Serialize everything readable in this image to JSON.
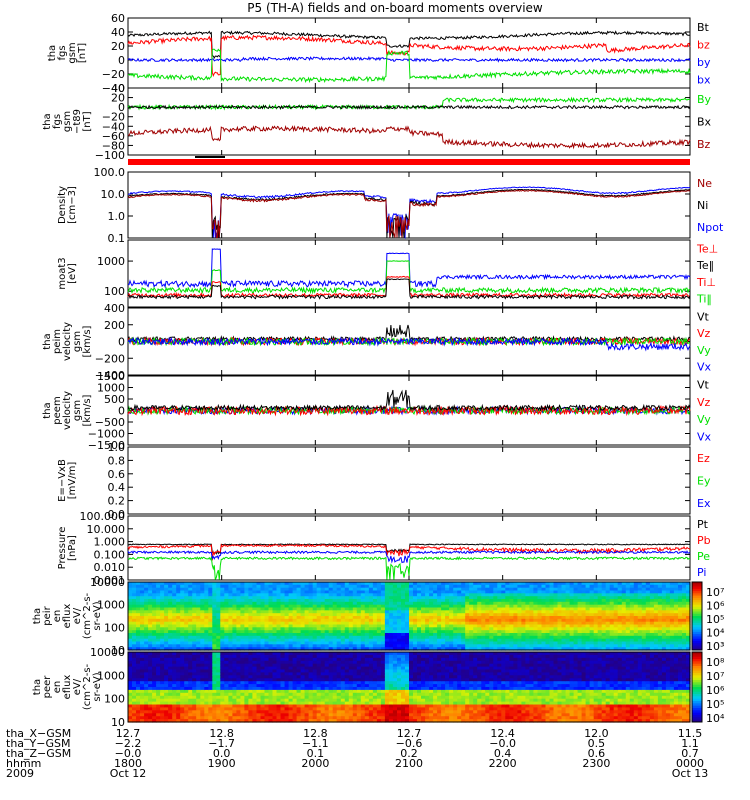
{
  "title": "P5 (TH-A) fields and on-board moments overview",
  "colors": {
    "black": "#000000",
    "red": "#ff0000",
    "green": "#00e000",
    "blue": "#0000ff",
    "darkred": "#a00000",
    "ion_flag": "#ff0000"
  },
  "chart_data": {
    "type": "line",
    "time_range_ut": [
      1800,
      2400
    ],
    "panels": [
      {
        "id": "fgs",
        "ylabel": [
          "tha",
          "fgs",
          "gsm",
          "[nT]"
        ],
        "ylim": [
          -40,
          60
        ],
        "ticks": [
          "60",
          "40",
          "20",
          "0",
          "−20",
          "−40"
        ],
        "log": false,
        "legend": [
          {
            "name": "Bt",
            "color": "#000000"
          },
          {
            "name": "bz",
            "color": "#ff0000"
          },
          {
            "name": "by",
            "color": "#0000ff"
          },
          {
            "name": "bx",
            "color": "#0000ff"
          }
        ]
      },
      {
        "id": "fgs_t89",
        "ylabel": [
          "tha",
          "fgs",
          "gsm",
          "−t89",
          "[nT]"
        ],
        "ylim": [
          -100,
          40
        ],
        "ticks": [
          "40",
          "20",
          "0",
          "−20",
          "−40",
          "−60",
          "−80",
          "−100"
        ],
        "log": false,
        "legend": [
          {
            "name": "By",
            "color": "#00e000"
          },
          {
            "name": "Bx",
            "color": "#000000"
          },
          {
            "name": "Bz",
            "color": "#a00000"
          }
        ]
      },
      {
        "id": "density",
        "ylabel": [
          "Density",
          "[cm−3]"
        ],
        "ylim": [
          0.1,
          100.0
        ],
        "ticks": [
          "100.0",
          "10.0",
          "1.0",
          "0.1"
        ],
        "log": true,
        "legend": [
          {
            "name": "Ne",
            "color": "#a00000"
          },
          {
            "name": "Ni",
            "color": "#000000"
          },
          {
            "name": "Npot",
            "color": "#0000ff"
          }
        ]
      },
      {
        "id": "temperature",
        "ylabel": [
          "moat3",
          "[eV]"
        ],
        "ylim": [
          30,
          5000
        ],
        "ticks": [
          "1000",
          "100"
        ],
        "log": true,
        "legend": [
          {
            "name": "Te⊥",
            "color": "#ff0000"
          },
          {
            "name": "Te‖",
            "color": "#000000"
          },
          {
            "name": "Ti⊥",
            "color": "#ff0000"
          },
          {
            "name": "Ti‖",
            "color": "#00e000"
          }
        ]
      },
      {
        "id": "ion_velocity",
        "ylabel": [
          "tha",
          "peim",
          "velocity",
          "gsm",
          "[km/s]"
        ],
        "ylim": [
          -400,
          400
        ],
        "ticks": [
          "400",
          "200",
          "0",
          "−200",
          "−400"
        ],
        "log": false,
        "legend": [
          {
            "name": "Vt",
            "color": "#000000"
          },
          {
            "name": "Vz",
            "color": "#ff0000"
          },
          {
            "name": "Vy",
            "color": "#00e000"
          },
          {
            "name": "Vx",
            "color": "#0000ff"
          }
        ]
      },
      {
        "id": "electron_velocity",
        "ylabel": [
          "tha",
          "peem",
          "velocity",
          "gsm",
          "[km/s]"
        ],
        "ylim": [
          -1500,
          1500
        ],
        "ticks": [
          "1500",
          "1000",
          "500",
          "0",
          "−500",
          "−1000",
          "−1500"
        ],
        "log": false,
        "legend": [
          {
            "name": "Vt",
            "color": "#000000"
          },
          {
            "name": "Vz",
            "color": "#ff0000"
          },
          {
            "name": "Vy",
            "color": "#00e000"
          },
          {
            "name": "Vx",
            "color": "#0000ff"
          }
        ]
      },
      {
        "id": "efield",
        "ylabel": [
          "E=−VxB",
          "[mV/m]"
        ],
        "ylim": [
          0.0,
          1.0
        ],
        "ticks": [
          "1.0",
          "0.8",
          "0.6",
          "0.4",
          "0.2",
          "0.0"
        ],
        "log": false,
        "legend": [
          {
            "name": "Ez",
            "color": "#ff0000"
          },
          {
            "name": "Ey",
            "color": "#00e000"
          },
          {
            "name": "Ex",
            "color": "#0000ff"
          }
        ]
      },
      {
        "id": "pressure",
        "ylabel": [
          "Pressure",
          "[nPa]"
        ],
        "ylim": [
          0.001,
          100
        ],
        "ticks": [
          "100.000",
          "10.000",
          "1.000",
          "0.100",
          "0.010",
          "0.001"
        ],
        "log": true,
        "legend": [
          {
            "name": "Pt",
            "color": "#000000"
          },
          {
            "name": "Pb",
            "color": "#ff0000"
          },
          {
            "name": "Pe",
            "color": "#00e000"
          },
          {
            "name": "Pi",
            "color": "#0000ff"
          }
        ]
      },
      {
        "id": "ion_spec",
        "ylabel": [
          "tha",
          "peir",
          "en",
          "eflux",
          "eV/",
          "(cm^2-s-",
          "sr-eV)"
        ],
        "ylim": [
          10,
          10000
        ],
        "ticks": [
          "10000",
          "1000",
          "100",
          "10"
        ],
        "log": true,
        "colorbar": [
          "10⁷",
          "10⁶",
          "10⁵",
          "10⁴",
          "10³"
        ]
      },
      {
        "id": "electron_spec",
        "ylabel": [
          "tha",
          "peer",
          "en",
          "eflux",
          "eV/",
          "(cm^2-s-",
          "sr-eV)"
        ],
        "ylim": [
          10,
          10000
        ],
        "ticks": [
          "10000",
          "1000",
          "100",
          "10"
        ],
        "log": true,
        "colorbar": [
          "10⁸",
          "10⁷",
          "10⁶",
          "10⁵",
          "10⁴"
        ]
      }
    ],
    "footer": {
      "row_labels": [
        "tha_X−GSM",
        "tha_Y−GSM",
        "tha_Z−GSM",
        "hhmm",
        "2009"
      ],
      "ticks": [
        {
          "x": "12.7",
          "y": "−2.2",
          "z": "−0.0",
          "hhmm": "1800",
          "date": "Oct 12"
        },
        {
          "x": "12.8",
          "y": "−1.7",
          "z": "0.0",
          "hhmm": "1900",
          "date": ""
        },
        {
          "x": "12.8",
          "y": "−1.1",
          "z": "0.1",
          "hhmm": "2000",
          "date": ""
        },
        {
          "x": "12.7",
          "y": "−0.6",
          "z": "0.2",
          "hhmm": "2100",
          "date": ""
        },
        {
          "x": "12.4",
          "y": "−0.0",
          "z": "0.4",
          "hhmm": "2200",
          "date": ""
        },
        {
          "x": "12.0",
          "y": "0.5",
          "z": "0.6",
          "hhmm": "2300",
          "date": ""
        },
        {
          "x": "11.5",
          "y": "1.1",
          "z": "0.7",
          "hhmm": "0000",
          "date": "Oct 13"
        }
      ]
    }
  }
}
